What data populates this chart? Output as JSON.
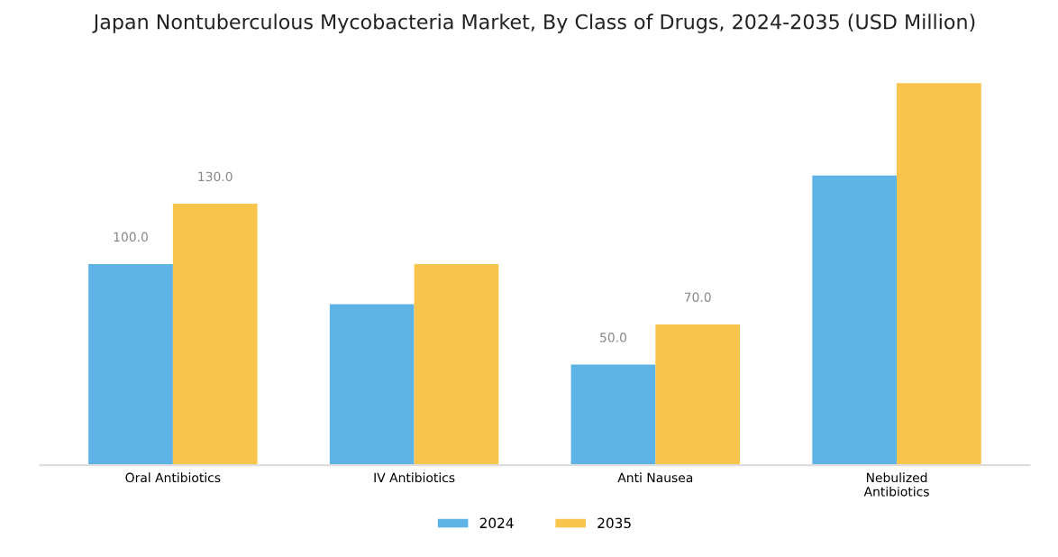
{
  "chart_data": {
    "type": "bar",
    "title": "Japan Nontuberculous Mycobacteria Market, By Class of Drugs, 2024-2035 (USD Million)",
    "categories": [
      "Oral Antibiotics",
      "IV Antibiotics",
      "Anti Nausea",
      "Nebulized\nAntibiotics"
    ],
    "series": [
      {
        "name": "2024",
        "color": "#5db3e6",
        "values": [
          100,
          80,
          50,
          144
        ],
        "value_labels": [
          "100.0",
          null,
          "50.0",
          null
        ]
      },
      {
        "name": "2035",
        "color": "#f9c44b",
        "values": [
          130,
          100,
          70,
          190
        ],
        "value_labels": [
          "130.0",
          null,
          "70.0",
          null
        ]
      }
    ],
    "legend": "bottom",
    "grid": false
  }
}
